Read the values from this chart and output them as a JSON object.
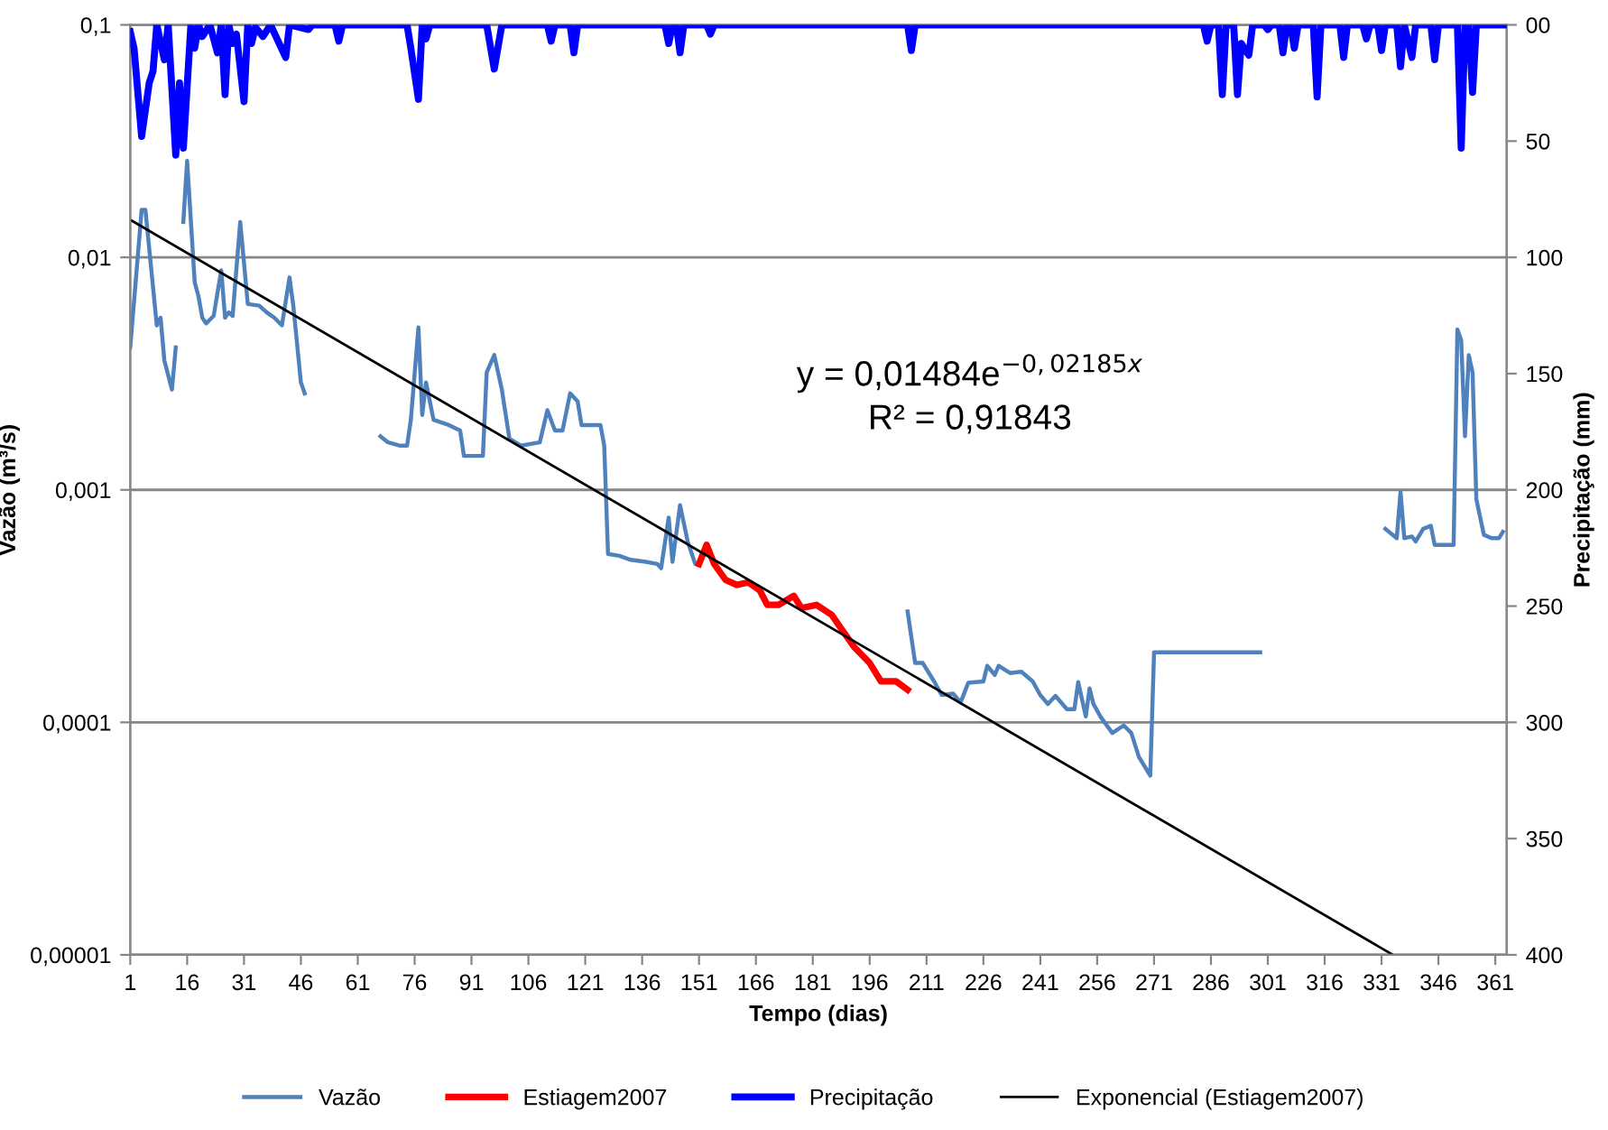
{
  "chart_data": {
    "type": "line",
    "xlabel": "Tempo (dias)",
    "ylabel": "Vazão (m³/s)",
    "y2label": "Precipitação (mm)",
    "xlim": [
      1,
      364
    ],
    "xticks": [
      1,
      16,
      31,
      46,
      61,
      76,
      91,
      106,
      121,
      136,
      151,
      166,
      181,
      196,
      211,
      226,
      241,
      256,
      271,
      286,
      301,
      316,
      331,
      346,
      361
    ],
    "log": "y",
    "ylim": [
      1e-05,
      0.1
    ],
    "yticks": [
      {
        "value": 0.1,
        "label": "0,1"
      },
      {
        "value": 0.01,
        "label": "0,01"
      },
      {
        "value": 0.001,
        "label": "0,001"
      },
      {
        "value": 0.0001,
        "label": "0,0001"
      },
      {
        "value": 1e-05,
        "label": "0,00001"
      }
    ],
    "y2lim": [
      400,
      0
    ],
    "y2ticks": [
      {
        "value": 0,
        "label": "00"
      },
      50,
      100,
      150,
      200,
      250,
      300,
      350,
      400
    ],
    "grid": "y",
    "legend": "bottom",
    "line_style": "solid",
    "marker": "none",
    "annotations": [
      "y = 0,01484e$^{−0,02185x}$",
      "R² = 0,91843"
    ],
    "series": [
      {
        "name": "Vazão",
        "color": "#4f81bd",
        "x": [
          1,
          4,
          5,
          8,
          9,
          10,
          12,
          13,
          14,
          15,
          16,
          18,
          19,
          20,
          21,
          23,
          25,
          26,
          27,
          28,
          30,
          32,
          35,
          37,
          39,
          41,
          43,
          44,
          46,
          47,
          48,
          67,
          69,
          72,
          74,
          75,
          77,
          78,
          79,
          81,
          85,
          88,
          89,
          94,
          95,
          97,
          99,
          101,
          104,
          109,
          111,
          113,
          115,
          117,
          119,
          120,
          125,
          126,
          127,
          130,
          133,
          137,
          140,
          141,
          143,
          144,
          146,
          148,
          150,
          151,
          178,
          206,
          208,
          210,
          213,
          215,
          218,
          220,
          222,
          226,
          227,
          229,
          230,
          233,
          236,
          239,
          241,
          243,
          245,
          248,
          250,
          251,
          253,
          254,
          255,
          257,
          260,
          263,
          265,
          267,
          270,
          271,
          299,
          315,
          332,
          335,
          336,
          337,
          339,
          340,
          342,
          344,
          345,
          350,
          351,
          352,
          353,
          354,
          355,
          356,
          358,
          360,
          362,
          363
        ],
        "values": [
          0.0041,
          0.016,
          0.016,
          0.0051,
          0.0055,
          0.0036,
          0.0027,
          0.0041,
          null,
          0.0142,
          0.026,
          0.0078,
          0.0068,
          0.0055,
          0.0052,
          0.0056,
          0.0088,
          0.0055,
          0.0058,
          0.0056,
          0.0142,
          0.0063,
          0.0062,
          0.0058,
          0.0055,
          0.0051,
          0.0082,
          0.0062,
          0.0029,
          0.0026,
          null,
          0.0017,
          0.0016,
          0.00155,
          0.00155,
          0.002,
          0.005,
          0.0021,
          0.0029,
          0.002,
          0.0019,
          0.0018,
          0.0014,
          0.0014,
          0.0032,
          0.0038,
          0.0027,
          0.00166,
          0.00155,
          0.0016,
          0.0022,
          0.0018,
          0.0018,
          0.0026,
          0.0024,
          0.0019,
          0.0019,
          0.00155,
          0.00053,
          0.00052,
          0.0005,
          0.00049,
          0.00048,
          0.00046,
          0.00076,
          0.00049,
          0.00086,
          0.0006,
          0.00048,
          0.00048,
          null,
          0.0003,
          0.00018,
          0.00018,
          0.00015,
          0.000131,
          0.000133,
          0.000122,
          0.000148,
          0.00015,
          0.000175,
          0.00016,
          0.000175,
          0.000163,
          0.000165,
          0.00015,
          0.000131,
          0.00012,
          0.00013,
          0.000114,
          0.000114,
          0.000149,
          0.000106,
          0.00014,
          0.00012,
          0.000105,
          9e-05,
          9.7e-05,
          9e-05,
          7.1e-05,
          5.9e-05,
          0.0002,
          0.0002,
          null,
          0.00068,
          0.00062,
          0.00098,
          0.00062,
          0.00063,
          0.0006,
          0.00068,
          0.0007,
          0.00058,
          0.00058,
          0.0049,
          0.0044,
          0.0017,
          0.0038,
          0.0032,
          0.00091,
          0.00064,
          0.00062,
          0.00062,
          0.00066
        ]
      },
      {
        "name": "Estiagem2007",
        "color": "#ff0000",
        "x": [
          151,
          153,
          155,
          158,
          161,
          164,
          167,
          169,
          172,
          176,
          178,
          182,
          186,
          188,
          192,
          196,
          199,
          203,
          206
        ],
        "values": [
          0.00048,
          0.00058,
          0.00048,
          0.00041,
          0.00039,
          0.0004,
          0.00037,
          0.00032,
          0.00032,
          0.00035,
          0.00031,
          0.00032,
          0.00029,
          0.00026,
          0.00021,
          0.00018,
          0.00015,
          0.00015,
          0.000138
        ]
      },
      {
        "name": "Precipitação",
        "color": "#0000ff",
        "axis": "y2",
        "x": [
          1,
          2,
          4,
          6,
          7,
          8,
          10,
          11,
          13,
          14,
          15,
          17,
          18,
          19,
          20,
          22,
          24,
          25,
          26,
          27,
          28,
          29,
          31,
          32,
          33,
          34,
          36,
          38,
          42,
          43,
          48,
          49,
          55,
          56,
          57,
          74,
          75,
          77,
          78,
          79,
          80,
          95,
          97,
          99,
          111,
          112,
          113,
          117,
          118,
          119,
          142,
          143,
          144,
          145,
          146,
          147,
          153,
          154,
          155,
          206,
          207,
          208,
          284,
          285,
          286,
          288,
          289,
          290,
          292,
          293,
          294,
          296,
          297,
          300,
          301,
          302,
          304,
          305,
          306,
          307,
          308,
          309,
          313,
          314,
          315,
          320,
          321,
          322,
          326,
          327,
          328,
          330,
          331,
          332,
          335,
          336,
          337,
          339,
          340,
          344,
          345,
          346,
          351,
          352,
          353,
          354,
          355,
          356,
          364
        ],
        "values": [
          3,
          10,
          48,
          25,
          20,
          0,
          15,
          0,
          56,
          25,
          53,
          0,
          10,
          0,
          5,
          0,
          12,
          0,
          30,
          0,
          8,
          4,
          33,
          0,
          8,
          1,
          5,
          0,
          14,
          0,
          2,
          0,
          0,
          7,
          0,
          0,
          10,
          32,
          0,
          6,
          0,
          0,
          19,
          0,
          0,
          7,
          0,
          0,
          12,
          0,
          0,
          8,
          0,
          0,
          12,
          0,
          0,
          4,
          0,
          0,
          11,
          0,
          0,
          7,
          0,
          0,
          30,
          0,
          0,
          30,
          8,
          13,
          0,
          0,
          2,
          0,
          0,
          12,
          0,
          0,
          10,
          0,
          0,
          31,
          0,
          0,
          14,
          0,
          0,
          6,
          0,
          0,
          11,
          0,
          0,
          18,
          0,
          14,
          0,
          0,
          15,
          0,
          0,
          53,
          0,
          0,
          29,
          0,
          0
        ]
      },
      {
        "name": "Exponencial (Estiagem2007)",
        "color": "#000000",
        "x": [
          1,
          334
        ],
        "values": [
          0.0145,
          1e-05
        ]
      }
    ]
  }
}
